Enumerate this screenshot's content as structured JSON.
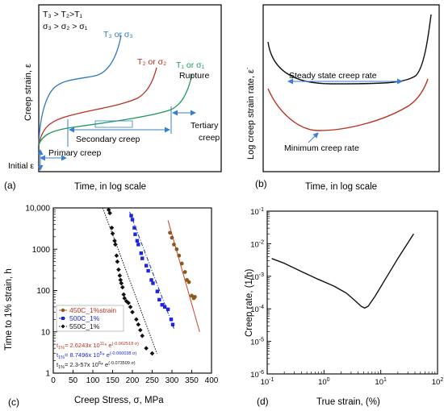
{
  "panel_a": {
    "panel_label": "(a)",
    "condition_line1": "T₃ > T₂>T₁",
    "condition_line2": "σ₃ > σ₂ > σ₁",
    "y_label": "Creep strain,  ε",
    "x_label": "Time, in log scale",
    "curve_labels": [
      "T₃ or σ₃",
      "T₂ or σ₂",
      "T₁ or σ₁"
    ],
    "rupture": "Rupture",
    "secondary": "Secondary creep",
    "tertiary_line1": "Tertiary",
    "tertiary_line2": "creep",
    "primary": "Primary creep",
    "initial": "Initial  ε"
  },
  "panel_b": {
    "panel_label": "(b)",
    "y_label": "Log creep strain rate,  ε˙",
    "x_label": "Time, in log scale",
    "steady": "Steady state creep rate",
    "minimum": "Minimum creep rate"
  },
  "panel_c": {
    "panel_label": "(c)",
    "equations": [
      {
        "prefix": "t",
        "sub": "1%",
        "body": "= 2.6243x 10",
        "exp1": "11",
        "mid": "* e",
        "exp2": "(-0.062518 σ)"
      },
      {
        "prefix": "t",
        "sub": "1%",
        "body": "= 8.7496x 10",
        "exp1": "5",
        "mid": "* e",
        "exp2": "(-0.060038 σ)"
      },
      {
        "prefix": "t",
        "sub": "1%",
        "body": "= 2.3-57x 10",
        "exp1": "6",
        "mid": "* e",
        "exp2": "(-0.073509 σ)"
      }
    ]
  },
  "panel_d": {
    "panel_label": "(d)"
  },
  "colors": {
    "blue_curve": "#2e78c2",
    "red_curve": "#b8321e",
    "green_curve": "#1e9a5e",
    "arrow_blue": "#3a7fd0",
    "s450": "#8b5a1b",
    "s500": "#1d25d8",
    "s550": "#111111",
    "fit450": "#d0402a"
  },
  "chart_data": [
    {
      "type": "scatter",
      "xlabel": "Creep Stress, σ, MPa",
      "ylabel": "Time to 1% strain, h",
      "xlim": [
        0,
        400
      ],
      "ylim": [
        1,
        10000
      ],
      "y_scale": "log",
      "x_ticks": [
        "0",
        "50",
        "100",
        "150",
        "200",
        "250",
        "300",
        "350",
        "400"
      ],
      "y_ticks": [
        "1",
        "10",
        "100",
        "1000",
        "10,000"
      ],
      "legend_position": "lower-left",
      "series": [
        {
          "name": "450C_1%strain",
          "color": "#8b5a1b",
          "x": [
            295,
            300,
            305,
            312,
            318,
            325,
            333,
            338,
            343,
            350,
            355,
            358
          ],
          "y": [
            2500,
            1900,
            1300,
            1000,
            700,
            450,
            280,
            180,
            160,
            75,
            65,
            70
          ]
        },
        {
          "name": "500C_1%",
          "color": "#1d25d8",
          "x": [
            197,
            200,
            205,
            207,
            212,
            215,
            222,
            225,
            235,
            240,
            248,
            252,
            263,
            268,
            275,
            282,
            290,
            298,
            302
          ],
          "y": [
            6500,
            5200,
            3300,
            2300,
            1600,
            1300,
            800,
            600,
            400,
            300,
            180,
            150,
            95,
            60,
            45,
            40,
            35,
            20,
            15
          ]
        },
        {
          "name": "550C_1%",
          "color": "#111111",
          "x": [
            140,
            143,
            148,
            150,
            155,
            157,
            160,
            162,
            165,
            168,
            170,
            172,
            175,
            178,
            180,
            185,
            190,
            195,
            200,
            210,
            215,
            220,
            225,
            235,
            250
          ],
          "y": [
            9000,
            7500,
            3300,
            2400,
            1600,
            1300,
            700,
            500,
            320,
            230,
            180,
            150,
            120,
            80,
            65,
            55,
            50,
            40,
            30,
            20,
            15,
            11,
            8,
            4,
            3
          ]
        }
      ],
      "fits": [
        {
          "name": "450C_1%strain",
          "x": [
            290,
            370
          ],
          "y": [
            5000,
            10
          ]
        },
        {
          "name": "500C_1%",
          "x": [
            193,
            305
          ],
          "y": [
            8000,
            12
          ]
        },
        {
          "name": "550C_1%",
          "x": [
            125,
            262
          ],
          "y": [
            10000,
            3
          ]
        }
      ]
    },
    {
      "type": "line",
      "xlabel": "True strain, (%)",
      "ylabel": "Creep rate, (1/h)",
      "x_scale": "log",
      "y_scale": "log",
      "xlim": [
        0.1,
        100
      ],
      "ylim": [
        1e-06,
        0.1
      ],
      "series": [
        {
          "name": "",
          "x": [
            0.12,
            0.2,
            0.4,
            0.8,
            1.5,
            2.5,
            3.5,
            4.5,
            5.2,
            6,
            8,
            12,
            20,
            30,
            38
          ],
          "y": [
            0.0035,
            0.0025,
            0.0014,
            0.0008,
            0.0005,
            0.0003,
            0.00018,
            0.00012,
            0.000105,
            0.00012,
            0.00025,
            0.0008,
            0.0035,
            0.0105,
            0.02
          ]
        }
      ]
    }
  ]
}
